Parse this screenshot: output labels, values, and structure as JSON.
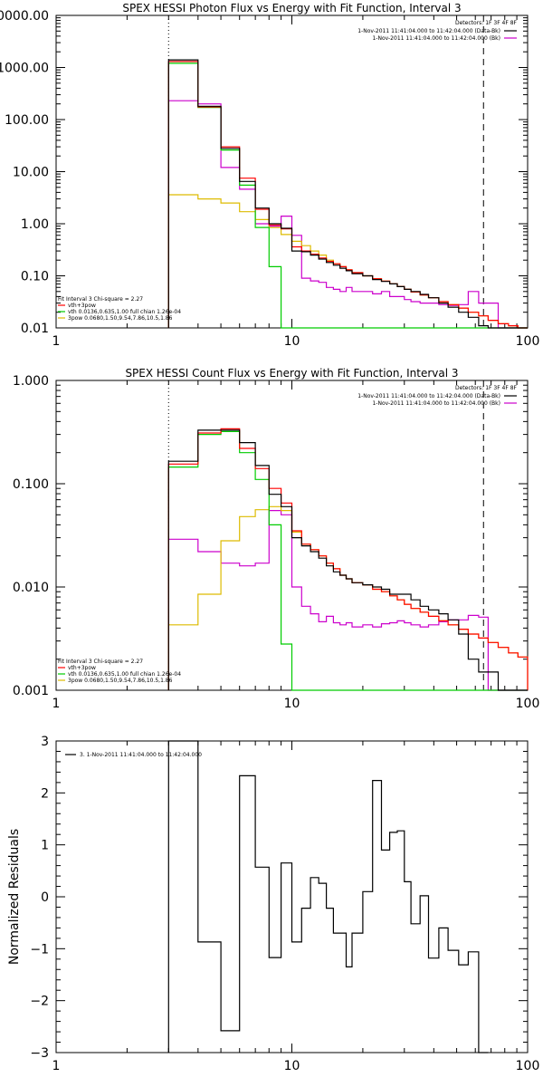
{
  "colors": {
    "total": "#ff0000",
    "thermal": "#00cc00",
    "powerlaw": "#ddbb00",
    "background": "#cc00cc",
    "data": "#000000"
  },
  "chart_data": [
    {
      "type": "line",
      "scale": "log-log",
      "title": "SPEX HESSI Photon Flux vs Energy with Fit Function, Interval 3",
      "xlabel": "",
      "ylabel": "",
      "xlim": [
        1,
        100
      ],
      "ylim": [
        0.01,
        10000
      ],
      "xticks": [
        {
          "v": 1,
          "label": "1"
        },
        {
          "v": 10,
          "label": "10"
        },
        {
          "v": 100,
          "label": "100"
        }
      ],
      "yticks": [
        {
          "v": 10000,
          "label": "10000.00"
        },
        {
          "v": 1000,
          "label": "1000.00"
        },
        {
          "v": 100,
          "label": "100.00"
        },
        {
          "v": 10,
          "label": "10.00"
        },
        {
          "v": 1,
          "label": "1.00"
        },
        {
          "v": 0.1,
          "label": "0.10"
        },
        {
          "v": 0.01,
          "label": "0.01"
        }
      ],
      "vlines": [
        {
          "x": 3,
          "style": "dotted"
        },
        {
          "x": 65,
          "style": "dashed"
        }
      ],
      "detectors": "Detectors: 1F 3F 4F 8F",
      "time_legend": [
        {
          "text": "1-Nov-2011 11:41:04.000 to 11:42:04.000 (Data-Bk)",
          "color": "#000000"
        },
        {
          "text": "1-Nov-2011 11:41:04.000 to 11:42:04.000 (Bk)",
          "color": "#cc00cc"
        }
      ],
      "fit_legend": [
        {
          "text": "Fit Interval 3   Chi-square = 2.27",
          "color": ""
        },
        {
          "text": "vth+3pow",
          "color": "#ff0000"
        },
        {
          "text": "vth 0.0136,0.635,1.00  full chian 1.26e-04",
          "color": "#00cc00"
        },
        {
          "text": "3pow 0.0680,1.50,9.54,7.86,10.5,1.86",
          "color": "#ddbb00"
        }
      ],
      "edges": [
        3,
        4,
        5,
        6,
        7,
        8,
        9,
        10,
        11,
        12,
        13,
        14,
        15,
        16,
        17,
        18,
        20,
        22,
        24,
        26,
        28,
        30,
        32,
        35,
        38,
        42,
        46,
        51,
        56,
        62,
        68,
        75,
        83,
        91,
        100
      ],
      "series": [
        {
          "key": "data",
          "values": [
            1400,
            180,
            28,
            6.5,
            2.0,
            1.0,
            0.82,
            0.3,
            0.29,
            0.25,
            0.21,
            0.18,
            0.16,
            0.14,
            0.125,
            0.11,
            0.1,
            0.085,
            0.078,
            0.07,
            0.062,
            0.055,
            0.05,
            0.044,
            0.038,
            0.03,
            0.025,
            0.02,
            0.016,
            0.011,
            0.01,
            0.01,
            0.01,
            0.01
          ]
        },
        {
          "key": "total",
          "values": [
            1300,
            175,
            30,
            7.5,
            1.9,
            0.95,
            0.8,
            0.36,
            0.3,
            0.26,
            0.22,
            0.19,
            0.17,
            0.15,
            0.13,
            0.115,
            0.1,
            0.088,
            0.079,
            0.07,
            0.062,
            0.055,
            0.049,
            0.043,
            0.038,
            0.032,
            0.028,
            0.024,
            0.02,
            0.017,
            0.014,
            0.012,
            0.011,
            0.01
          ]
        },
        {
          "key": "thermal",
          "values": [
            1200,
            170,
            26,
            5.5,
            0.85,
            0.15,
            0.01,
            0.01,
            0.01,
            0.01,
            0.01,
            0.01,
            0.01,
            0.01,
            0.01,
            0.01,
            0.01,
            0.01,
            0.01,
            0.01,
            0.01,
            0.01,
            0.01,
            0.01,
            0.01,
            0.01,
            0.01,
            0.01,
            0.01,
            0.01,
            0.01,
            0.01,
            0.01,
            0.01
          ]
        },
        {
          "key": "powerlaw",
          "values": [
            3.6,
            3.0,
            2.5,
            1.7,
            1.2,
            0.85,
            0.62,
            0.46,
            0.38,
            0.3,
            0.25,
            0.2,
            0.17,
            0.15,
            0.13,
            0.115,
            0.1,
            0.088,
            0.079,
            0.07,
            0.062,
            0.055,
            0.049,
            0.043,
            0.038,
            0.032,
            0.028,
            0.024,
            0.02,
            0.017,
            0.014,
            0.012,
            0.011,
            0.01
          ]
        },
        {
          "key": "background",
          "values": [
            230,
            200,
            12,
            4.6,
            1.0,
            0.9,
            1.4,
            0.6,
            0.09,
            0.08,
            0.075,
            0.06,
            0.055,
            0.05,
            0.06,
            0.05,
            0.05,
            0.045,
            0.05,
            0.04,
            0.04,
            0.035,
            0.032,
            0.03,
            0.03,
            0.028,
            0.027,
            0.028,
            0.05,
            0.03,
            0.03,
            0.01,
            0.01,
            0.01
          ]
        }
      ]
    },
    {
      "type": "line",
      "scale": "log-log",
      "title": "SPEX HESSI Count Flux vs Energy with Fit Function, Interval 3",
      "xlabel": "",
      "ylabel": "",
      "xlim": [
        1,
        100
      ],
      "ylim": [
        0.001,
        1
      ],
      "xticks": [
        {
          "v": 1,
          "label": "1"
        },
        {
          "v": 10,
          "label": "10"
        },
        {
          "v": 100,
          "label": "100"
        }
      ],
      "yticks": [
        {
          "v": 1,
          "label": "1.000"
        },
        {
          "v": 0.1,
          "label": "0.100"
        },
        {
          "v": 0.01,
          "label": "0.010"
        },
        {
          "v": 0.001,
          "label": "0.001"
        }
      ],
      "vlines": [
        {
          "x": 3,
          "style": "dotted"
        },
        {
          "x": 65,
          "style": "dashed"
        }
      ],
      "detectors": "Detectors: 1F 3F 4F 8F",
      "time_legend": [
        {
          "text": "1-Nov-2011 11:41:04.000 to 11:42:04.000 (Data-Bk)",
          "color": "#000000"
        },
        {
          "text": "1-Nov-2011 11:41:04.000 to 11:42:04.000 (Bk)",
          "color": "#cc00cc"
        }
      ],
      "fit_legend": [
        {
          "text": "Fit Interval 3   Chi-square = 2.27",
          "color": ""
        },
        {
          "text": "vth+3pow",
          "color": "#ff0000"
        },
        {
          "text": "vth 0.0136,0.635,1.00  full chian 1.26e-04",
          "color": "#00cc00"
        },
        {
          "text": "3pow 0.0680,1.50,9.54,7.86,10.5,1.86",
          "color": "#ddbb00"
        }
      ],
      "edges": [
        3,
        4,
        5,
        6,
        7,
        8,
        9,
        10,
        11,
        12,
        13,
        14,
        15,
        16,
        17,
        18,
        20,
        22,
        24,
        26,
        28,
        30,
        32,
        35,
        38,
        42,
        46,
        51,
        56,
        62,
        68,
        75,
        83,
        91,
        100
      ],
      "series": [
        {
          "key": "data",
          "values": [
            0.165,
            0.33,
            0.33,
            0.25,
            0.15,
            0.079,
            0.06,
            0.03,
            0.025,
            0.022,
            0.019,
            0.016,
            0.014,
            0.013,
            0.012,
            0.011,
            0.0105,
            0.01,
            0.0095,
            0.0085,
            0.0085,
            0.0085,
            0.0075,
            0.0065,
            0.006,
            0.0055,
            0.0048,
            0.0035,
            0.002,
            0.0015,
            0.0015,
            0.001,
            0.001,
            0.001
          ]
        },
        {
          "key": "total",
          "values": [
            0.155,
            0.31,
            0.34,
            0.22,
            0.14,
            0.09,
            0.065,
            0.035,
            0.026,
            0.023,
            0.02,
            0.017,
            0.015,
            0.013,
            0.012,
            0.011,
            0.0105,
            0.0095,
            0.009,
            0.0082,
            0.0075,
            0.0068,
            0.0062,
            0.0057,
            0.0052,
            0.0047,
            0.0043,
            0.0039,
            0.0035,
            0.0032,
            0.0029,
            0.0026,
            0.0023,
            0.0021
          ]
        },
        {
          "key": "thermal",
          "values": [
            0.145,
            0.3,
            0.32,
            0.2,
            0.11,
            0.04,
            0.0028,
            0.001,
            0.001,
            0.001,
            0.001,
            0.001,
            0.001,
            0.001,
            0.001,
            0.001,
            0.001,
            0.001,
            0.001,
            0.001,
            0.001,
            0.001,
            0.001,
            0.001,
            0.001,
            0.001,
            0.001,
            0.001,
            0.001,
            0.001,
            0.001,
            0.001,
            0.001,
            0.001
          ]
        },
        {
          "key": "powerlaw",
          "values": [
            0.0043,
            0.0085,
            0.028,
            0.048,
            0.056,
            0.06,
            0.055,
            0.034,
            0.026,
            0.023,
            0.02,
            0.017,
            0.015,
            0.013,
            0.012,
            0.011,
            0.0105,
            0.0095,
            0.009,
            0.0082,
            0.0075,
            0.0068,
            0.0062,
            0.0057,
            0.0052,
            0.0047,
            0.0043,
            0.0039,
            0.0035,
            0.0032,
            0.0029,
            0.0026,
            0.0023,
            0.0021
          ]
        },
        {
          "key": "background",
          "values": [
            0.029,
            0.022,
            0.017,
            0.016,
            0.017,
            0.055,
            0.05,
            0.01,
            0.0065,
            0.0055,
            0.0046,
            0.0052,
            0.0045,
            0.0043,
            0.0045,
            0.0041,
            0.0043,
            0.0041,
            0.0044,
            0.0045,
            0.0047,
            0.0045,
            0.0043,
            0.0041,
            0.0043,
            0.0046,
            0.0048,
            0.0048,
            0.0053,
            0.0051,
            0.001,
            0.001,
            0.001,
            0.001
          ]
        }
      ]
    },
    {
      "type": "line",
      "scale": "log-linear",
      "title": "",
      "xlabel": "",
      "ylabel": "Normalized Residuals",
      "xlim": [
        1,
        100
      ],
      "ylim": [
        -3,
        3
      ],
      "xticks": [
        {
          "v": 1,
          "label": "1"
        },
        {
          "v": 10,
          "label": "10"
        },
        {
          "v": 100,
          "label": "100"
        }
      ],
      "yticks": [
        {
          "v": 3,
          "label": "3"
        },
        {
          "v": 2,
          "label": "2"
        },
        {
          "v": 1,
          "label": "1"
        },
        {
          "v": 0,
          "label": "0"
        },
        {
          "v": -1,
          "label": "−1"
        },
        {
          "v": -2,
          "label": "−2"
        },
        {
          "v": -3,
          "label": "−3"
        }
      ],
      "legend": "3. 1-Nov-2011 11:41:04.000 to 11:42:04.000",
      "edges": [
        3,
        4,
        5,
        6,
        7,
        8,
        9,
        10,
        11,
        12,
        13,
        14,
        15,
        16,
        17,
        18,
        20,
        22,
        24,
        26,
        28,
        30,
        32,
        35,
        38,
        42,
        46,
        51,
        56,
        62,
        68
      ],
      "series": [
        {
          "key": "data",
          "values": [
            3.0,
            -0.87,
            -2.58,
            2.33,
            0.57,
            -1.17,
            0.65,
            -0.87,
            -0.22,
            0.37,
            0.26,
            -0.22,
            -0.7,
            -0.7,
            -1.35,
            -0.7,
            0.1,
            2.24,
            0.9,
            1.24,
            1.27,
            0.29,
            -0.52,
            0.02,
            -1.18,
            -0.6,
            -1.03,
            -1.31,
            -1.06,
            -3.0
          ]
        }
      ]
    }
  ]
}
